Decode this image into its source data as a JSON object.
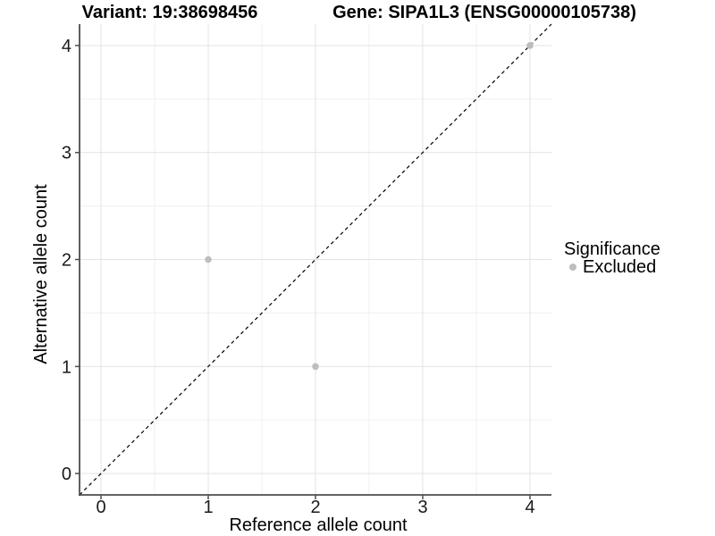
{
  "chart_data": {
    "type": "scatter",
    "title_left": "Variant: 19:38698456",
    "title_right": "Gene: SIPA1L3 (ENSG00000105738)",
    "xlabel": "Reference allele count",
    "ylabel": "Alternative allele count",
    "xlim": [
      -0.2,
      4.2
    ],
    "ylim": [
      -0.2,
      4.2
    ],
    "x_ticks": [
      0,
      1,
      2,
      3,
      4
    ],
    "y_ticks": [
      0,
      1,
      2,
      3,
      4
    ],
    "x_minor": [
      0.5,
      1.5,
      2.5,
      3.5
    ],
    "y_minor": [
      0.5,
      1.5,
      2.5,
      3.5
    ],
    "grid": true,
    "identity_line": {
      "equation": "y = x",
      "style": "dashed",
      "color": "#000000"
    },
    "series": [
      {
        "name": "Excluded",
        "color": "#bebebe",
        "points": [
          {
            "x": 1,
            "y": 2
          },
          {
            "x": 2,
            "y": 1
          },
          {
            "x": 4,
            "y": 4
          }
        ]
      }
    ],
    "legend": {
      "position": "right",
      "title": "Significance",
      "items": [
        {
          "label": "Excluded",
          "color": "#bebebe"
        }
      ]
    },
    "colors": {
      "background": "#ffffff",
      "grid_major": "#e3e3e3",
      "grid_minor": "#f0f0f0",
      "axis_line": "#4d4d4d",
      "tick_mark": "#4d4d4d",
      "point": "#bebebe",
      "text": "#000000"
    }
  }
}
